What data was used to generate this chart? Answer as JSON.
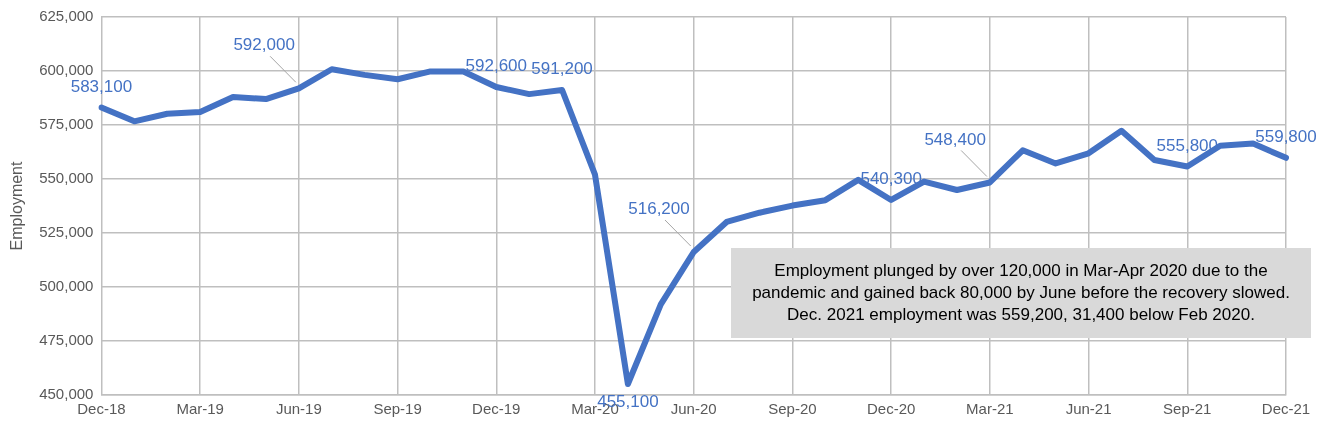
{
  "chart_data": {
    "type": "line",
    "ylabel": "Employment",
    "categories": [
      "Dec-18",
      null,
      null,
      "Mar-19",
      null,
      null,
      "Jun-19",
      null,
      null,
      "Sep-19",
      null,
      null,
      "Dec-19",
      null,
      null,
      "Mar-20",
      null,
      null,
      "Jun-20",
      null,
      null,
      "Sep-20",
      null,
      null,
      "Dec-20",
      null,
      null,
      "Mar-21",
      null,
      null,
      "Jun-21",
      null,
      null,
      "Sep-21",
      null,
      null,
      "Dec-21"
    ],
    "series": [
      {
        "color": "#4472c4",
        "values": [
          583100,
          576700,
          580200,
          581000,
          588000,
          587000,
          592000,
          600800,
          598200,
          596200,
          599800,
          599800,
          592600,
          589300,
          591200,
          552000,
          455100,
          492000,
          516200,
          530100,
          534400,
          537700,
          540200,
          549600,
          540300,
          548800,
          544900,
          548400,
          563300,
          557200,
          561900,
          572300,
          558800,
          555800,
          565400,
          566400,
          559800
        ],
        "value_labels": [
          "583,100",
          null,
          null,
          null,
          null,
          null,
          "592,000",
          null,
          null,
          null,
          null,
          null,
          "592,600",
          null,
          "591,200",
          null,
          "455,100",
          null,
          "516,200",
          null,
          null,
          null,
          null,
          null,
          "540,300",
          null,
          null,
          "548,400",
          null,
          null,
          null,
          null,
          null,
          "555,800",
          null,
          null,
          "559,800"
        ]
      }
    ],
    "ylim": [
      450000,
      625000
    ],
    "yticks": [
      {
        "value": 450000,
        "label": "450,000"
      },
      {
        "value": 475000,
        "label": "475,000"
      },
      {
        "value": 500000,
        "label": "500,000"
      },
      {
        "value": 525000,
        "label": "525,000"
      },
      {
        "value": 550000,
        "label": "550,000"
      },
      {
        "value": 575000,
        "label": "575,000"
      },
      {
        "value": 600000,
        "label": "600,000"
      },
      {
        "value": 625000,
        "label": "625,000"
      }
    ],
    "grid": true,
    "legend": false,
    "marker": "none",
    "line_style": "solid",
    "annotations": [
      "Employment plunged by over 120,000 in Mar-Apr 2020 due to the pandemic and gained back 80,000 by June before the recovery slowed. Dec. 2021 employment was 559,200, 31,400 below Feb 2020."
    ]
  }
}
